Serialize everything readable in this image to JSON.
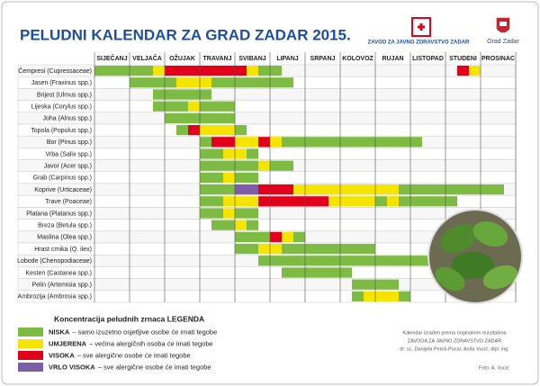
{
  "header": {
    "title": "PELUDNI KALENDAR ZA GRAD ZADAR 2015.",
    "institute": "ZAVOD ZA JAVNO ZDRAVSTVO ZADAR",
    "city": "Grad Zadar"
  },
  "months": [
    "SIJEČANJ",
    "VELJAČA",
    "OŽUJAK",
    "TRAVANJ",
    "SVIBANJ",
    "LIPANJ",
    "SRPANJ",
    "KOLOVOZ",
    "RUJAN",
    "LISTOPAD",
    "STUDENI",
    "PROSINAC"
  ],
  "rows": [
    {
      "name": "Čempresi (Cupressaceae)",
      "segments": [
        [
          0,
          4,
          0
        ],
        [
          5,
          5,
          1
        ],
        [
          6,
          12,
          2
        ],
        [
          13,
          13,
          1
        ],
        [
          14,
          15,
          0
        ],
        [
          31,
          31,
          2
        ],
        [
          32,
          32,
          1
        ]
      ]
    },
    {
      "name": "Jasen (Fraxinus spp.)",
      "segments": [
        [
          3,
          6,
          0
        ],
        [
          7,
          9,
          1
        ],
        [
          10,
          16,
          0
        ]
      ]
    },
    {
      "name": "Brijest (Ulmus spp.)",
      "segments": [
        [
          5,
          9,
          0
        ]
      ]
    },
    {
      "name": "Lijeska (Corylus spp.)",
      "segments": [
        [
          5,
          7,
          0
        ],
        [
          8,
          8,
          1
        ],
        [
          9,
          11,
          0
        ]
      ]
    },
    {
      "name": "Joha (Alnus spp.)",
      "segments": [
        [
          6,
          11,
          0
        ]
      ]
    },
    {
      "name": "Topola (Populus spp.)",
      "segments": [
        [
          7,
          7,
          0
        ],
        [
          8,
          8,
          2
        ],
        [
          9,
          11,
          1
        ],
        [
          12,
          12,
          0
        ]
      ]
    },
    {
      "name": "Bor (Pinus spp.)",
      "segments": [
        [
          9,
          9,
          0
        ],
        [
          10,
          11,
          2
        ],
        [
          12,
          13,
          1
        ],
        [
          14,
          14,
          2
        ],
        [
          15,
          15,
          1
        ],
        [
          16,
          27,
          0
        ]
      ]
    },
    {
      "name": "Vrba (Salix spp.)",
      "segments": [
        [
          9,
          10,
          0
        ],
        [
          11,
          12,
          1
        ],
        [
          13,
          13,
          0
        ]
      ]
    },
    {
      "name": "Javor (Acer spp.)",
      "segments": [
        [
          9,
          13,
          0
        ],
        [
          14,
          14,
          1
        ],
        [
          15,
          16,
          0
        ]
      ]
    },
    {
      "name": "Grab (Carpinus spp.)",
      "segments": [
        [
          9,
          10,
          0
        ],
        [
          11,
          11,
          1
        ],
        [
          12,
          13,
          0
        ]
      ]
    },
    {
      "name": "Koprive (Urticaceae)",
      "segments": [
        [
          9,
          11,
          0
        ],
        [
          12,
          13,
          3
        ],
        [
          14,
          16,
          2
        ],
        [
          17,
          25,
          1
        ],
        [
          26,
          34,
          0
        ]
      ]
    },
    {
      "name": "Trave (Poaceae)",
      "segments": [
        [
          9,
          10,
          0
        ],
        [
          11,
          13,
          1
        ],
        [
          14,
          19,
          2
        ],
        [
          20,
          23,
          1
        ],
        [
          24,
          24,
          0
        ],
        [
          25,
          25,
          1
        ],
        [
          26,
          30,
          0
        ]
      ]
    },
    {
      "name": "Platana (Platanus spp.)",
      "segments": [
        [
          9,
          10,
          0
        ],
        [
          11,
          11,
          1
        ],
        [
          12,
          13,
          0
        ]
      ]
    },
    {
      "name": "Breza (Betula spp.)",
      "segments": [
        [
          10,
          11,
          0
        ],
        [
          12,
          12,
          1
        ],
        [
          13,
          13,
          0
        ]
      ]
    },
    {
      "name": "Maslina (Olea spp.)",
      "segments": [
        [
          12,
          14,
          0
        ],
        [
          15,
          15,
          2
        ],
        [
          16,
          16,
          1
        ],
        [
          17,
          17,
          0
        ]
      ]
    },
    {
      "name": "Hrast crnika (Q. ilex)",
      "segments": [
        [
          12,
          13,
          0
        ],
        [
          14,
          15,
          1
        ],
        [
          16,
          23,
          0
        ]
      ]
    },
    {
      "name": "Lobode (Chenopodiaceae)",
      "segments": [
        [
          14,
          28,
          0
        ]
      ]
    },
    {
      "name": "Kesten (Castanea spp.)",
      "segments": [
        [
          16,
          21,
          0
        ]
      ]
    },
    {
      "name": "Pelin (Artemisia spp.)",
      "segments": [
        [
          22,
          25,
          0
        ]
      ]
    },
    {
      "name": "Ambrozija (Ambrosia spp.)",
      "segments": [
        [
          22,
          22,
          0
        ],
        [
          23,
          25,
          1
        ],
        [
          26,
          26,
          0
        ]
      ]
    }
  ],
  "legend": {
    "title": "Koncentracija peludnih zrnaca LEGENDA",
    "items": [
      {
        "label": "NISKA",
        "desc": "– samo izuzetno osjetljive osobe će imati tegobe",
        "color": "#7dbb42"
      },
      {
        "label": "UMJERENA",
        "desc": "– većina alergičnih osoba će imati tegobe",
        "color": "#f4e400"
      },
      {
        "label": "VISOKA",
        "desc": "– sve alergične osobe će imati tegobe",
        "color": "#e2001a"
      },
      {
        "label": "VRLO VISOKA",
        "desc": "– sve alergične osobe će imati tegobe",
        "color": "#7b5ea7"
      }
    ]
  },
  "notes": [
    "Kalendar izrađen prema originalnim rezultatima",
    "ZAVODA ZA JAVNO ZDRAVSTVO ZADAR",
    "dr. sc. Danijela Peroš-Pucar, Anita Vucić, dipl. ing."
  ],
  "photo_credit": "Foto: A. Vucić"
}
